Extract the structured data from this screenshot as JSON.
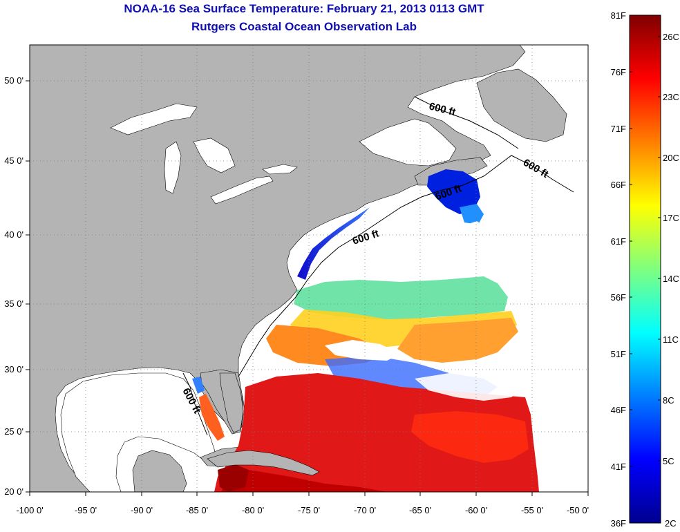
{
  "title": {
    "line1": "NOAA-16 Sea Surface Temperature:  February 21, 2013 0113 GMT",
    "line2": "Rutgers Coastal Ocean Observation Lab"
  },
  "map": {
    "lon_ticks": [
      "-100 0'",
      "-95 0'",
      "-90 0'",
      "-85 0'",
      "-80 0'",
      "-75 0'",
      "-70 0'",
      "-65 0'",
      "-60 0'",
      "-55 0'",
      "-50 0'"
    ],
    "lat_ticks": [
      "50 0'",
      "45 0'",
      "40 0'",
      "35 0'",
      "30 0'",
      "25 0'",
      "20 0'"
    ],
    "contour_label": "600 ft",
    "colors": {
      "land": "#b4b4b4",
      "cloud_or_nodata": "#ffffff",
      "grid": "#888888"
    }
  },
  "colorbar": {
    "fahrenheit_labels": [
      "81F",
      "76F",
      "71F",
      "66F",
      "61F",
      "56F",
      "51F",
      "46F",
      "41F",
      "36F"
    ],
    "celsius_labels": [
      "26C",
      "23C",
      "20C",
      "17C",
      "14C",
      "11C",
      "8C",
      "5C",
      "2C"
    ],
    "colors": [
      "#00008f",
      "#0000ff",
      "#007fff",
      "#00ffff",
      "#7fff7f",
      "#ffff00",
      "#ff7f00",
      "#ff0000",
      "#7f0000"
    ]
  }
}
